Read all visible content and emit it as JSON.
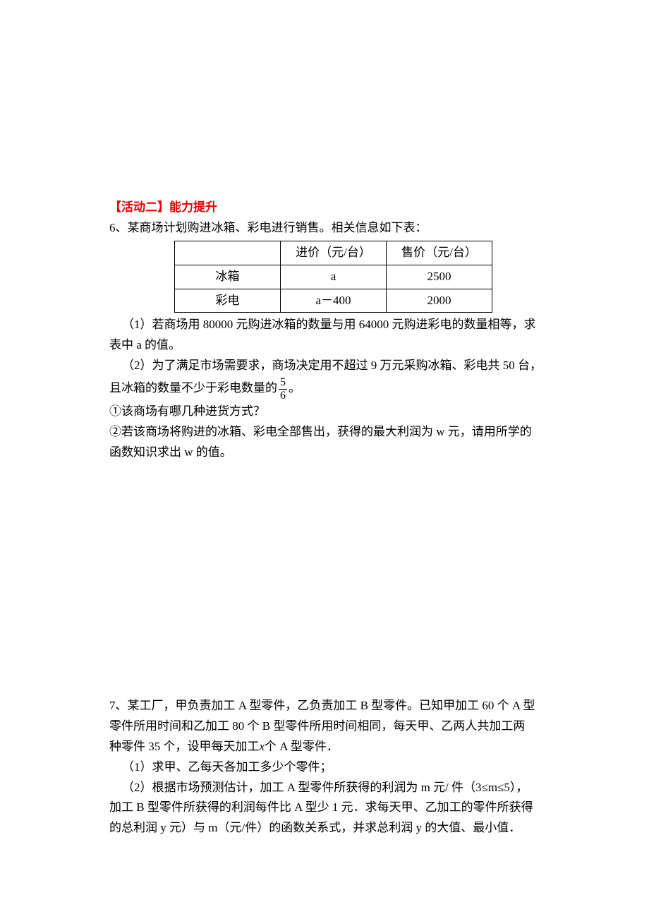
{
  "section2": {
    "header": "【活动二】能力提升",
    "q6": {
      "intro": "6、某商场计划购进冰箱、彩电进行销售。相关信息如下表：",
      "table": {
        "headers": [
          "",
          "进价（元/台）",
          "售价（元/台）"
        ],
        "rows": [
          [
            "冰箱",
            "a",
            "2500"
          ],
          [
            "彩电",
            "a－400",
            "2000"
          ]
        ]
      },
      "part1_a": "（1）若商场用 80000 元购进冰箱的数量与用 64000 元购进彩电的数量相等，求",
      "part1_b": "表中 a 的值。",
      "part2_a": "（2）为了满足市场需要求，商场决定用不超过 9 万元采购冰箱、彩电共 50 台，",
      "part2_b_prefix": "且冰箱的数量不少于彩电数量的",
      "part2_b_suffix": "。",
      "fraction": {
        "num": "5",
        "den": "6"
      },
      "sub1": "①该商场有哪几种进货方式？",
      "sub2_a": "②若该商场将购进的冰箱、彩电全部售出，获得的最大利润为 w 元，请用所学的",
      "sub2_b": "函数知识求出 w 的值。"
    },
    "q7": {
      "line1": "7、某工厂，甲负责加工 A 型零件，乙负责加工 B 型零件。已知甲加工 60 个 A 型",
      "line2": "零件所用时间和乙加工 80 个 B 型零件所用时间相同，每天甲、乙两人共加工两",
      "line3_prefix": "种零件 35 个，设甲每天加工",
      "line3_x": "x",
      "line3_suffix": "个 A 型零件．",
      "part1": "（1）求甲、乙每天各加工多少个零件；",
      "part2_a": "（2）根据市场预测估计，加工 A 型零件所获得的利润为 m 元/ 件（3≤m≤5），",
      "part2_b": "加工 B 型零件所获得的利润每件比 A 型少 1 元．求每天甲、乙加工的零件所获得",
      "part2_c": "的总利润 y 元）与 m（元/件）的函数关系式，并求总利润 y 的大值、最小值．"
    }
  },
  "colors": {
    "header": "#ee0000",
    "text": "#000000",
    "background": "#ffffff",
    "border": "#000000"
  },
  "typography": {
    "body_fontsize": 17,
    "font_family": "SimSun"
  }
}
